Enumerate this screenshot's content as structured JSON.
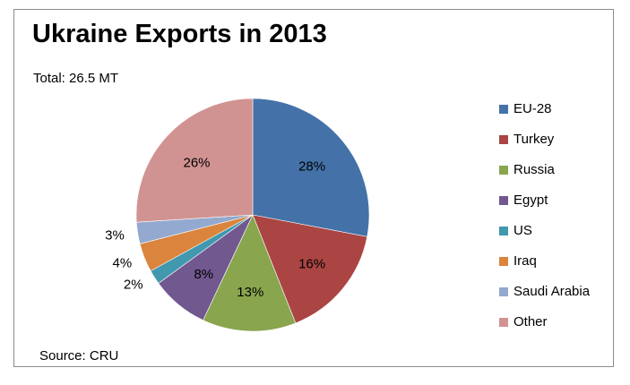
{
  "title": "Ukraine Exports in 2013",
  "total_label": "Total: 26.5 MT",
  "source_label": "Source: CRU",
  "chart_data": {
    "type": "pie",
    "title": "Ukraine Exports in 2013",
    "subtitle": "Total: 26.5 MT",
    "source": "Source: CRU",
    "legend_position": "right",
    "slices": [
      {
        "name": "EU-28",
        "value": 28,
        "label": "28%",
        "color": "#4472a8"
      },
      {
        "name": "Turkey",
        "value": 16,
        "label": "16%",
        "color": "#aa4543"
      },
      {
        "name": "Russia",
        "value": 13,
        "label": "13%",
        "color": "#89a54e"
      },
      {
        "name": "Egypt",
        "value": 8,
        "label": "8%",
        "color": "#71588f"
      },
      {
        "name": "US",
        "value": 2,
        "label": "2%",
        "color": "#4198af"
      },
      {
        "name": "Iraq",
        "value": 4,
        "label": "4%",
        "color": "#db843d"
      },
      {
        "name": "Saudi Arabia",
        "value": 3,
        "label": "3%",
        "color": "#93a9cf"
      },
      {
        "name": "Other",
        "value": 26,
        "label": "26%",
        "color": "#d19392"
      }
    ]
  }
}
